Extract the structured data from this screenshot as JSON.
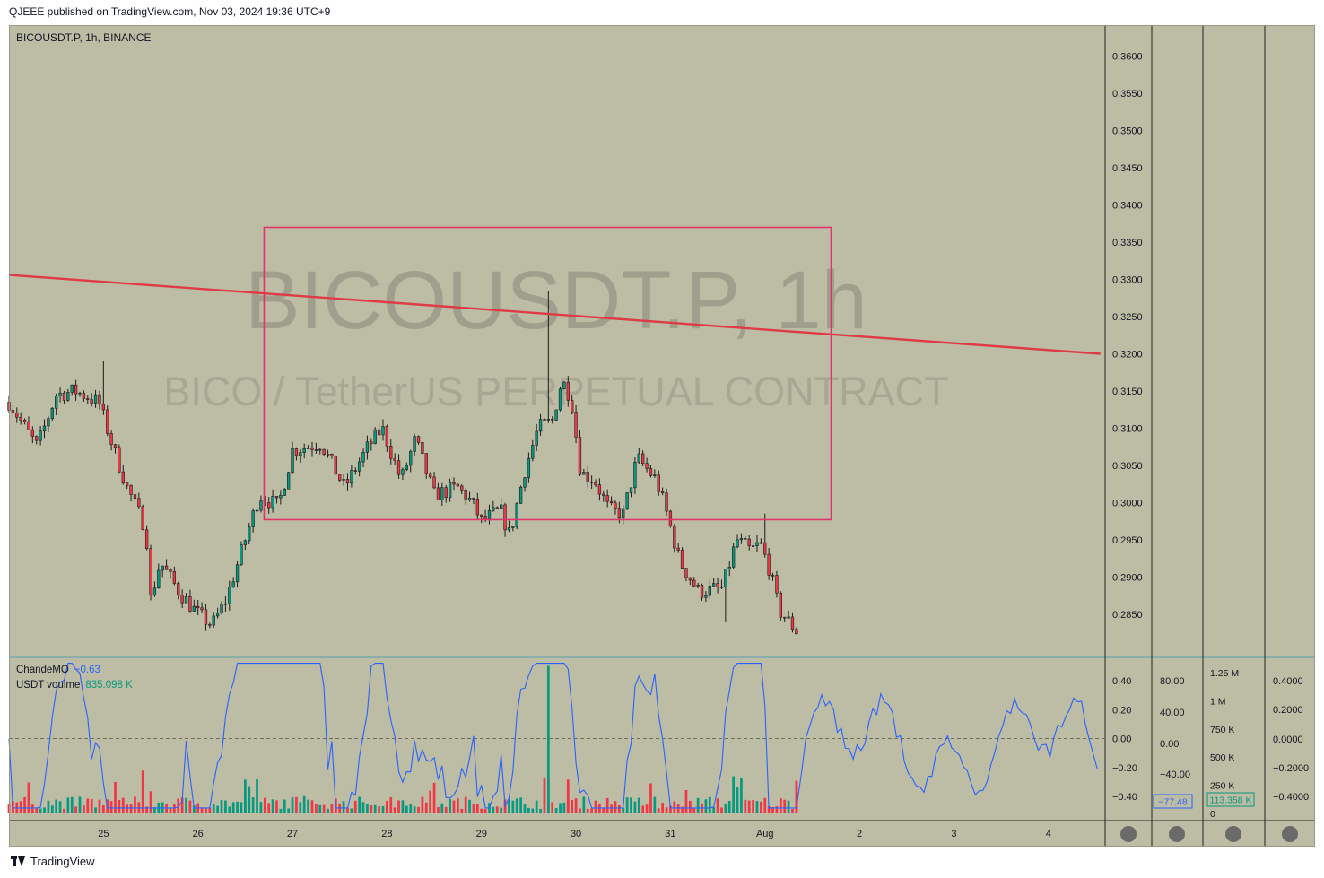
{
  "header": {
    "published": "QJEEE published on TradingView.com, Nov 03, 2024 19:36 UTC+9"
  },
  "symbol": {
    "title": "BICOUSDT.P, 1h, BINANCE",
    "watermark_main": "BICOUSDT.P, 1h",
    "watermark_sub": "BICO / TetherUS PERPETUAL CONTRACT"
  },
  "indicators": {
    "cmo_label": "ChandeMO",
    "cmo_value": "−0.63",
    "vol_label": "USDT voulme",
    "vol_value": "835.098 K",
    "cmo_badge": "−77.48",
    "vol_badge": "113.358 K"
  },
  "footer": {
    "brand": "TradingView"
  },
  "colors": {
    "background": "#bdbca4",
    "up": "#089981",
    "down": "#f23645",
    "trendline": "#e03a46",
    "box": "#e0356a",
    "cmo_line": "#2962ff"
  },
  "chart_data": [
    {
      "type": "candlestick",
      "name": "price",
      "x_ticks": [
        "25",
        "26",
        "27",
        "28",
        "29",
        "30",
        "31",
        "Aug",
        "2",
        "3",
        "4"
      ],
      "y_ticks": [
        "0.3600",
        "0.3550",
        "0.3500",
        "0.3450",
        "0.3400",
        "0.3350",
        "0.3300",
        "0.3250",
        "0.3200",
        "0.3150",
        "0.3100",
        "0.3050",
        "0.3000",
        "0.2950",
        "0.2900",
        "0.2850"
      ],
      "ylim": [
        0.2822,
        0.3625
      ],
      "close_path": [
        [
          24.0,
          0.3135
        ],
        [
          24.3,
          0.3075
        ],
        [
          24.5,
          0.3145
        ],
        [
          24.7,
          0.315
        ],
        [
          24.95,
          0.3135
        ],
        [
          25.1,
          0.3075
        ],
        [
          25.25,
          0.302
        ],
        [
          25.45,
          0.2965
        ],
        [
          25.5,
          0.287
        ],
        [
          25.6,
          0.292
        ],
        [
          25.8,
          0.288
        ],
        [
          26.0,
          0.285
        ],
        [
          26.15,
          0.2835
        ],
        [
          26.3,
          0.287
        ],
        [
          26.45,
          0.293
        ],
        [
          26.65,
          0.301
        ],
        [
          26.85,
          0.2995
        ],
        [
          27.0,
          0.307
        ],
        [
          27.3,
          0.308
        ],
        [
          27.55,
          0.302
        ],
        [
          27.8,
          0.3075
        ],
        [
          27.95,
          0.31
        ],
        [
          28.15,
          0.303
        ],
        [
          28.3,
          0.3085
        ],
        [
          28.5,
          0.301
        ],
        [
          28.75,
          0.302
        ],
        [
          28.9,
          0.3
        ],
        [
          29.0,
          0.2975
        ],
        [
          29.2,
          0.299
        ],
        [
          29.3,
          0.2955
        ],
        [
          29.45,
          0.304
        ],
        [
          29.6,
          0.31
        ],
        [
          29.75,
          0.311
        ],
        [
          29.85,
          0.3165
        ],
        [
          29.95,
          0.314
        ],
        [
          30.05,
          0.304
        ],
        [
          30.2,
          0.303
        ],
        [
          30.35,
          0.299
        ],
        [
          30.5,
          0.2985
        ],
        [
          30.65,
          0.306
        ],
        [
          30.85,
          0.303
        ],
        [
          30.95,
          0.299
        ],
        [
          31.1,
          0.292
        ],
        [
          31.3,
          0.288
        ],
        [
          31.55,
          0.2885
        ],
        [
          31.7,
          0.295
        ],
        [
          31.85,
          0.2935
        ],
        [
          31.95,
          0.2945
        ],
        [
          32.05,
          0.291
        ],
        [
          32.15,
          0.2855
        ],
        [
          32.35,
          0.2825
        ]
      ]
    },
    {
      "type": "line",
      "name": "ChandeMO",
      "y_ticks": [
        "0.40",
        "0.20",
        "0.00",
        "−0.20",
        "−0.40"
      ],
      "ylim": [
        -0.5,
        0.52
      ],
      "zero_line": true
    },
    {
      "type": "bar",
      "name": "USDT voulme",
      "y_ticks": [
        "1.25 M",
        "1 M",
        "750 K",
        "500 K",
        "250 K",
        "0"
      ],
      "ylim": [
        0,
        1400000
      ]
    },
    {
      "type": "axis",
      "name": "pane-scale-2",
      "y_ticks": [
        "80.00",
        "40.00",
        "0.00",
        "−40.00"
      ]
    },
    {
      "type": "axis",
      "name": "pane-scale-4",
      "y_ticks": [
        "0.4000",
        "0.2000",
        "0.0000",
        "−0.2000",
        "−0.4000"
      ]
    }
  ],
  "annotations": {
    "trendline": {
      "from": [
        24.0,
        0.3306
      ],
      "to": [
        35.55,
        0.32
      ]
    },
    "rectangle": {
      "x_from": 26.7,
      "x_to": 32.7,
      "y_from": 0.2977,
      "y_to": 0.337
    }
  }
}
